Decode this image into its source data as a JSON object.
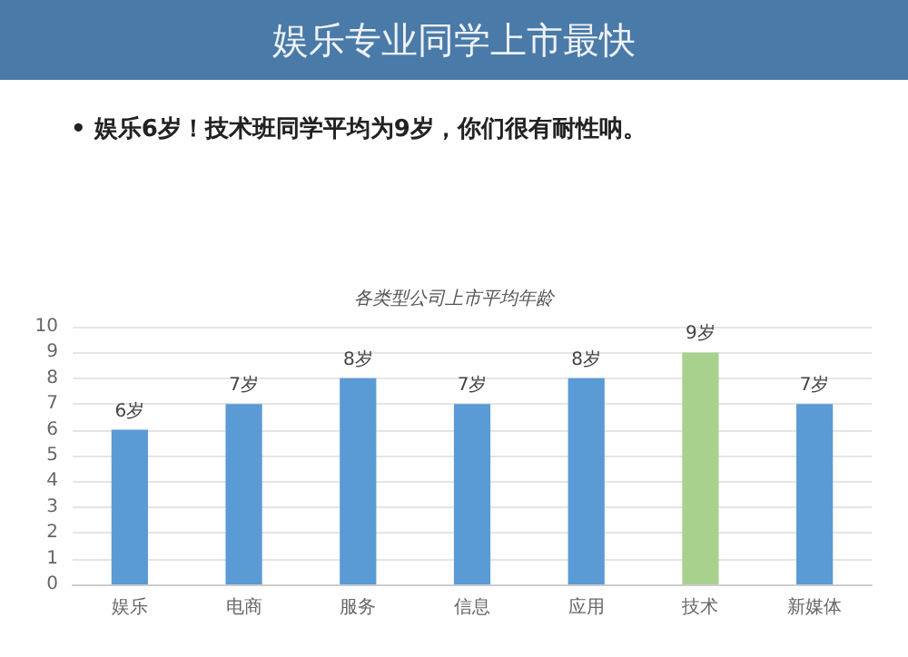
{
  "chart_data": {
    "type": "bar",
    "title": "娱乐专业同学上市最快",
    "subtitle": "• 娱乐6岁！技术班同学平均为9岁，你们很有耐性呐。",
    "annotations": [
      "各类型公司上市平均年龄"
    ],
    "categories": [
      "娱乐",
      "电商",
      "服务",
      "信息",
      "应用",
      "技术",
      "新媒体"
    ],
    "values": [
      6,
      7,
      8,
      7,
      8,
      9,
      7
    ],
    "colors": [
      "#5b9bd5",
      "#5b9bd5",
      "#5b9bd5",
      "#5b9bd5",
      "#5b9bd5",
      "#a9d18e",
      "#5b9bd5"
    ],
    "value_labels": [
      "6岁",
      "7岁",
      "8岁",
      "7岁",
      "8岁",
      "9岁",
      "7岁"
    ],
    "ylim": [
      0,
      10
    ],
    "yticks": [
      0,
      1,
      2,
      3,
      4,
      5,
      6,
      7,
      8,
      9,
      10
    ],
    "grid": "y"
  }
}
